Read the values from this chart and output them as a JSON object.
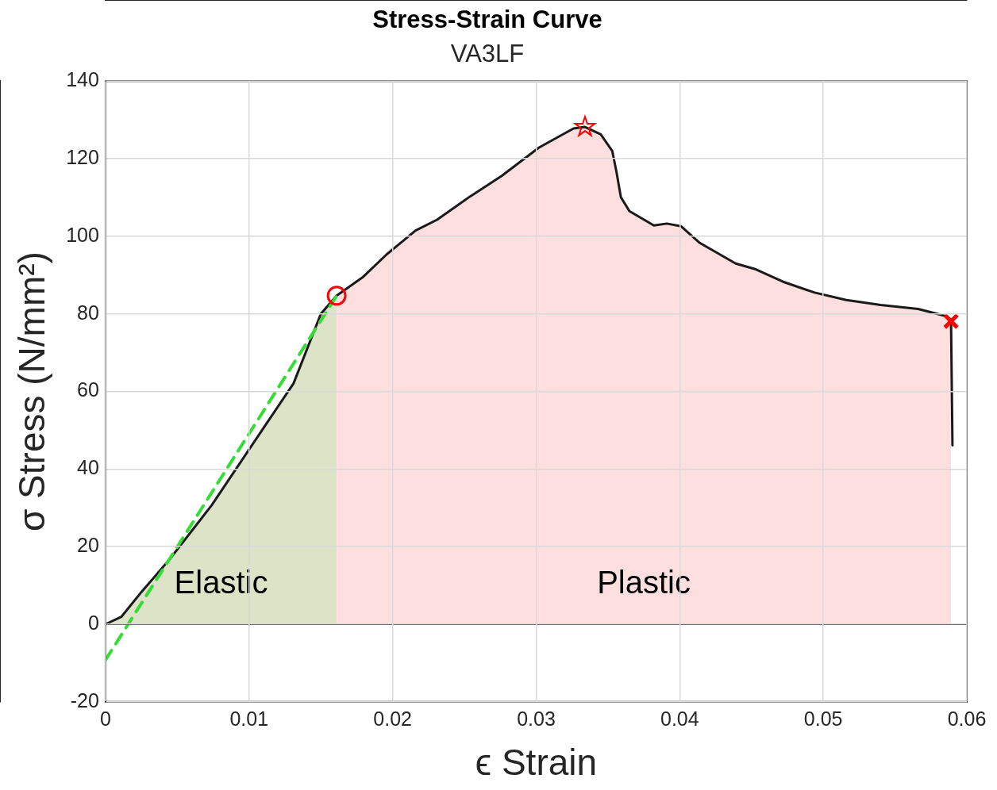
{
  "chart_data": {
    "type": "line",
    "title": "Stress-Strain Curve",
    "subtitle": "VA3LF",
    "xlabel": "ϵ Strain",
    "ylabel": "σ Stress (N/mm²)",
    "xlim": [
      0,
      0.06
    ],
    "xticks": [
      0,
      0.01,
      0.02,
      0.03,
      0.04,
      0.05,
      0.06
    ],
    "ylim": [
      -20,
      140
    ],
    "yticks": [
      -20,
      0,
      20,
      40,
      60,
      80,
      100,
      120,
      140
    ],
    "grid": true,
    "legend": false,
    "series": [
      {
        "type": "area",
        "color": "#dce3c6",
        "x": [
          0,
          0.0011,
          0.0025,
          0.0045,
          0.0074,
          0.0103,
          0.0131,
          0.015,
          0.0161
        ],
        "values": [
          0,
          1.9,
          8.3,
          16.9,
          30.7,
          46.7,
          62.1,
          80,
          84.7
        ]
      },
      {
        "type": "area",
        "color": "#fddfe0",
        "x": [
          0.0161,
          0.0179,
          0.0196,
          0.0216,
          0.0231,
          0.0254,
          0.0276,
          0.0302,
          0.0326,
          0.0334,
          0.0345,
          0.0353,
          0.0356,
          0.0359,
          0.0365,
          0.0382,
          0.0391,
          0.0401,
          0.0414,
          0.0439,
          0.0453,
          0.0472,
          0.0494,
          0.0516,
          0.054,
          0.0566,
          0.0586,
          0.0589
        ],
        "values": [
          84.7,
          89.4,
          95.4,
          101.5,
          104.3,
          110.3,
          115.6,
          122.9,
          127.8,
          128.2,
          126.3,
          122,
          116.5,
          110.1,
          106.5,
          102.8,
          103.3,
          102.6,
          98.3,
          93,
          91.5,
          88.3,
          85.5,
          83.6,
          82.3,
          81.3,
          79.4,
          78.1
        ]
      },
      {
        "color": "#1a1a1a",
        "line_style": "solid",
        "x": [
          0,
          0.0011,
          0.0025,
          0.0045,
          0.0074,
          0.0103,
          0.0131,
          0.015,
          0.0161,
          0.0179,
          0.0196,
          0.0216,
          0.0231,
          0.0254,
          0.0276,
          0.0302,
          0.0326,
          0.0334,
          0.0345,
          0.0353,
          0.0356,
          0.0359,
          0.0365,
          0.0382,
          0.0391,
          0.0401,
          0.0414,
          0.0439,
          0.0453,
          0.0472,
          0.0494,
          0.0516,
          0.054,
          0.0566,
          0.0586,
          0.0589,
          0.059
        ],
        "values": [
          0,
          1.9,
          8.3,
          16.9,
          30.7,
          46.7,
          62.1,
          80,
          84.7,
          89.4,
          95.4,
          101.5,
          104.3,
          110.3,
          115.6,
          122.9,
          127.8,
          128.2,
          126.3,
          122,
          116.5,
          110.1,
          106.5,
          102.8,
          103.3,
          102.6,
          98.3,
          93,
          91.5,
          88.3,
          85.5,
          83.6,
          82.3,
          81.3,
          79.4,
          78.1,
          46.1
        ]
      },
      {
        "type": "line",
        "color": "#33dd33",
        "line_style": "dashed",
        "x": [
          0,
          0.0161
        ],
        "values": [
          -9.2,
          84.7
        ]
      },
      {
        "type": "scatter",
        "color": "#ff0000",
        "marker": "circle",
        "x": [
          0.0161
        ],
        "values": [
          84.7
        ]
      },
      {
        "type": "scatter",
        "color": "#ff0000",
        "marker": "star",
        "x": [
          0.0334
        ],
        "values": [
          128.2
        ]
      },
      {
        "type": "scatter",
        "color": "#ff0000",
        "marker": "cross",
        "x": [
          0.0589
        ],
        "values": [
          78.1
        ]
      }
    ],
    "ref_lines": [
      {
        "axis": "y",
        "value": 0,
        "color": "#000000"
      }
    ],
    "annotations": [
      "Elastic",
      "Plastic"
    ]
  }
}
